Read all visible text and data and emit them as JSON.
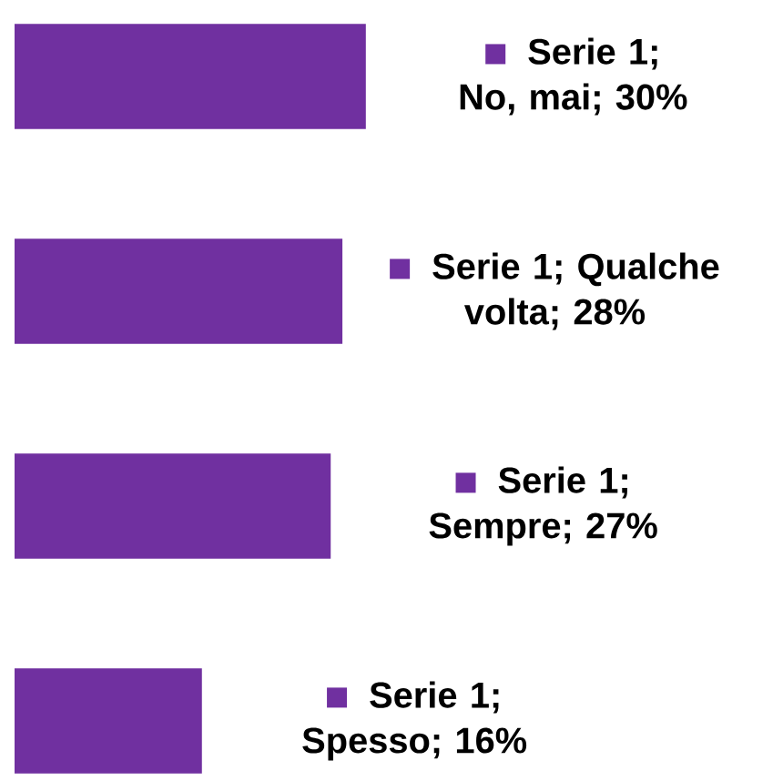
{
  "chart_data": {
    "type": "bar",
    "orientation": "horizontal",
    "categories": [
      null,
      null,
      null,
      null
    ],
    "series": [
      {
        "color": "#7030a0",
        "values": [
          30,
          28,
          27,
          16
        ],
        "value_labels": [
          "Serie 1; No, mai; 30%",
          "Serie 1; Qualche volta; 28%",
          "Serie 1; Sempre; 27%",
          "Serie 1; Spesso; 16%"
        ]
      }
    ]
  }
}
